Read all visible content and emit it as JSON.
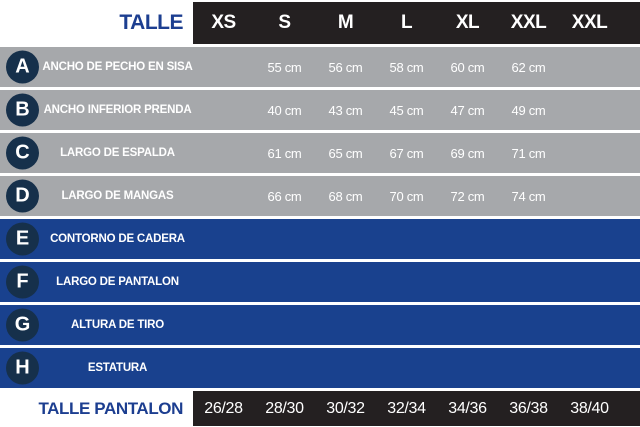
{
  "chart_data": {
    "type": "table",
    "header": {
      "label": "TALLE",
      "sizes": [
        "XS",
        "S",
        "M",
        "L",
        "XL",
        "XXL",
        "XXL"
      ]
    },
    "rows": [
      {
        "letter": "A",
        "label": "ANCHO DE PECHO EN SISA",
        "group": "gray",
        "values": [
          "",
          "55 cm",
          "56 cm",
          "58 cm",
          "60 cm",
          "62 cm",
          ""
        ]
      },
      {
        "letter": "B",
        "label": "ANCHO INFERIOR PRENDA",
        "group": "gray",
        "values": [
          "",
          "40 cm",
          "43 cm",
          "45 cm",
          "47 cm",
          "49 cm",
          ""
        ]
      },
      {
        "letter": "C",
        "label": "LARGO DE ESPALDA",
        "group": "gray",
        "values": [
          "",
          "61 cm",
          "65 cm",
          "67 cm",
          "69 cm",
          "71 cm",
          ""
        ]
      },
      {
        "letter": "D",
        "label": "LARGO DE MANGAS",
        "group": "gray",
        "values": [
          "",
          "66 cm",
          "68 cm",
          "70 cm",
          "72 cm",
          "74 cm",
          ""
        ]
      },
      {
        "letter": "E",
        "label": "CONTORNO DE CADERA",
        "group": "blue",
        "values": [
          "",
          "",
          "",
          "",
          "",
          "",
          ""
        ]
      },
      {
        "letter": "F",
        "label": "LARGO DE PANTALON",
        "group": "blue",
        "values": [
          "",
          "",
          "",
          "",
          "",
          "",
          ""
        ]
      },
      {
        "letter": "G",
        "label": "ALTURA DE TIRO",
        "group": "blue",
        "values": [
          "",
          "",
          "",
          "",
          "",
          "",
          ""
        ]
      },
      {
        "letter": "H",
        "label": "ESTATURA",
        "group": "blue",
        "values": [
          "",
          "",
          "",
          "",
          "",
          "",
          ""
        ]
      }
    ],
    "footer": {
      "label": "TALLE PANTALON",
      "values": [
        "26/28",
        "28/30",
        "30/32",
        "32/34",
        "34/36",
        "36/38",
        "38/40"
      ]
    }
  },
  "colors": {
    "header_dark": "#242021",
    "row_gray": "#a6a8ab",
    "row_blue": "#19418e",
    "badge_navy": "#16304b",
    "accent_blue_text": "#1c3e90",
    "text_white": "#ffffff"
  }
}
